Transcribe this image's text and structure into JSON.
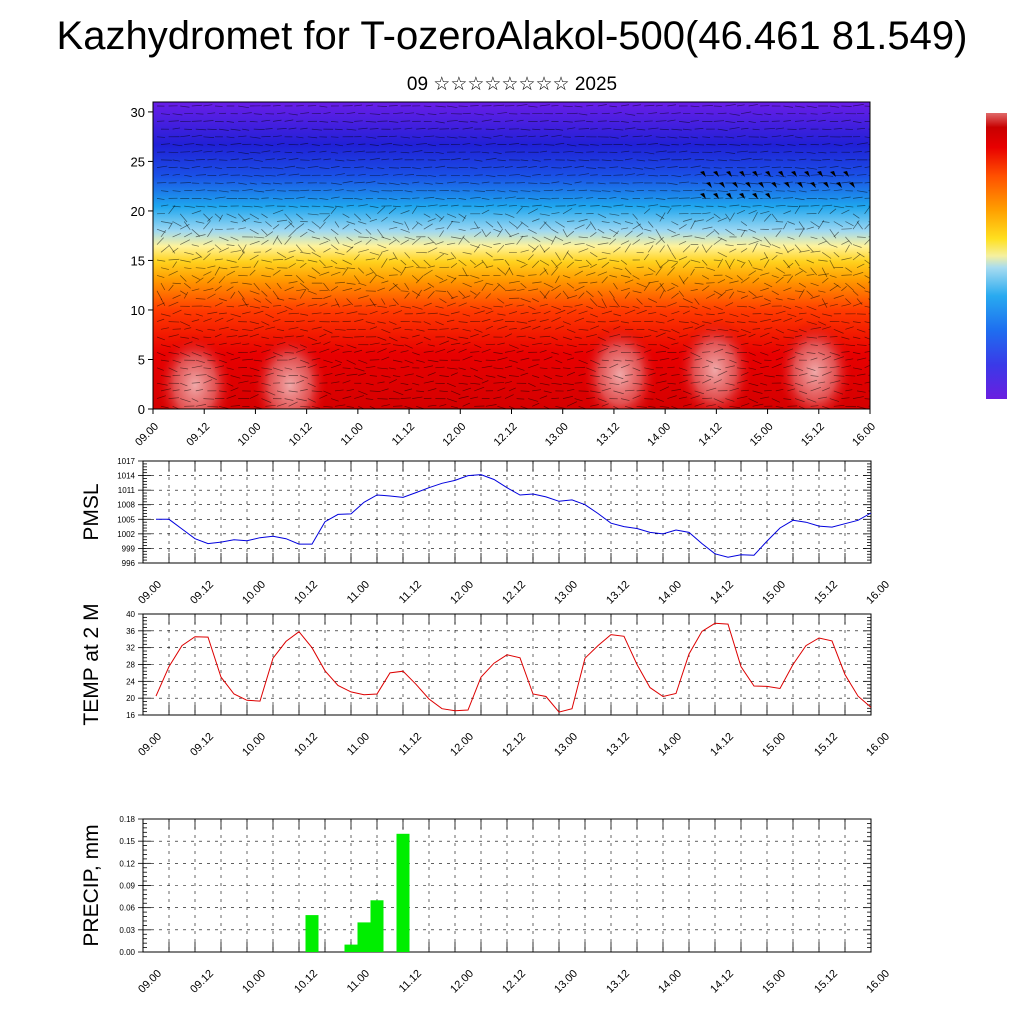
{
  "title": "Kazhydromet for T-ozeroAlakol-500(46.461 81.549)",
  "subtitle": "09 ☆☆☆☆☆☆☆☆ 2025",
  "colors": {
    "pmsl_line": "#0000dd",
    "temp_line": "#dd0000",
    "precip_bar": "#00ee00",
    "grid": "#000000",
    "colorbar": [
      "#6a1ee0",
      "#3a3ae8",
      "#1e6ef0",
      "#28aaf0",
      "#a8dcf0",
      "#f5f0a0",
      "#ffe020",
      "#ffa000",
      "#ff5000",
      "#e80000",
      "#c80000",
      "#e06a6a"
    ]
  },
  "x_tick_labels": [
    "09.00",
    "09.12",
    "10.00",
    "10.12",
    "11.00",
    "11.12",
    "12.00",
    "12.12",
    "13.00",
    "13.12",
    "14.00",
    "14.12",
    "15.00",
    "15.12",
    "16.00"
  ],
  "chart_data": [
    {
      "type": "heatmap",
      "description_field": "vertical cross-section with wind vectors",
      "y_ticks": [
        0,
        5,
        10,
        15,
        20,
        25,
        30
      ],
      "ylim": [
        0,
        31
      ],
      "x_categories": [
        "09.00",
        "09.12",
        "10.00",
        "10.12",
        "11.00",
        "11.12",
        "12.00",
        "12.12",
        "13.00",
        "13.12",
        "14.00",
        "14.12",
        "15.00",
        "15.12",
        "16.00"
      ]
    },
    {
      "type": "line",
      "ylabel": "PMSL",
      "y_ticks": [
        996,
        999,
        1002,
        1005,
        1008,
        1011,
        1014,
        1017
      ],
      "ylim": [
        996,
        1017
      ],
      "x": [
        0.5,
        1,
        1.5,
        2,
        2.5,
        3,
        3.5,
        4,
        4.5,
        5,
        5.5,
        6,
        6.5,
        7,
        7.5,
        8,
        8.5,
        9,
        9.5,
        10,
        10.5,
        11,
        11.5,
        12,
        12.5,
        13,
        13.5,
        14,
        14.5,
        15,
        15.5,
        16,
        16.5,
        17,
        17.5,
        18,
        18.5,
        19,
        19.5,
        20,
        20.5,
        21,
        21.5,
        22,
        22.5,
        23,
        23.5,
        24,
        24.5,
        25,
        25.5,
        26,
        26.5,
        27,
        27.5,
        28
      ],
      "values": [
        1005,
        1005,
        1003,
        1001,
        1000,
        1000.3,
        1000.8,
        1000.6,
        1001.2,
        1001.5,
        1001,
        999.9,
        999.9,
        1004.5,
        1006,
        1006.1,
        1008.5,
        1010,
        1009.8,
        1009.5,
        1010.5,
        1011.5,
        1012.4,
        1013,
        1014,
        1014.2,
        1013.2,
        1011.5,
        1010,
        1010.2,
        1009.6,
        1008.7,
        1009,
        1008,
        1006.2,
        1004.2,
        1003.5,
        1003.1,
        1002.3,
        1002,
        1002.8,
        1002.3,
        1000,
        997.9,
        997.2,
        997.7,
        997.6,
        1000.5,
        1003.2,
        1004.8,
        1004.4,
        1003.6,
        1003.4,
        1004.1,
        1004.8,
        1006.3
      ]
    },
    {
      "type": "line",
      "ylabel": "TEMP at 2 M",
      "y_ticks": [
        16,
        20,
        24,
        28,
        32,
        36,
        40
      ],
      "ylim": [
        16,
        40
      ],
      "x": [
        0.5,
        1,
        1.5,
        2,
        2.5,
        3,
        3.5,
        4,
        4.5,
        5,
        5.5,
        6,
        6.5,
        7,
        7.5,
        8,
        8.5,
        9,
        9.5,
        10,
        10.5,
        11,
        11.5,
        12,
        12.5,
        13,
        13.5,
        14,
        14.5,
        15,
        15.5,
        16,
        16.5,
        17,
        17.5,
        18,
        18.5,
        19,
        19.5,
        20,
        20.5,
        21,
        21.5,
        22,
        22.5,
        23,
        23.5,
        24,
        24.5,
        25,
        25.5,
        26,
        26.5,
        27,
        27.5,
        28
      ],
      "values": [
        20.5,
        27.5,
        32.5,
        34.6,
        34.5,
        25,
        21,
        19.5,
        19.3,
        29.5,
        33.5,
        35.8,
        32,
        26.5,
        23,
        21.5,
        20.8,
        21,
        26,
        26.4,
        23.3,
        19.8,
        17.5,
        17,
        17.2,
        25,
        28.3,
        30.3,
        29.6,
        21,
        20.4,
        16.7,
        17.5,
        29.5,
        32.5,
        35.1,
        34.7,
        28,
        22.5,
        20.4,
        21.1,
        30.5,
        35.9,
        37.8,
        37.6,
        27.5,
        22.9,
        22.8,
        22.3,
        28,
        32.5,
        34.3,
        33.6,
        25.6,
        20.5,
        17.8
      ]
    },
    {
      "type": "bar",
      "ylabel": "PRECIP, mm",
      "y_ticks": [
        "0.00",
        "0.03",
        "0.06",
        "0.09",
        "0.12",
        "0.15",
        "0.18"
      ],
      "ylim": [
        0,
        0.18
      ],
      "x": [
        6.5,
        8,
        8.5,
        9,
        10
      ],
      "values": [
        0.05,
        0.01,
        0.04,
        0.07,
        0.16
      ]
    }
  ]
}
